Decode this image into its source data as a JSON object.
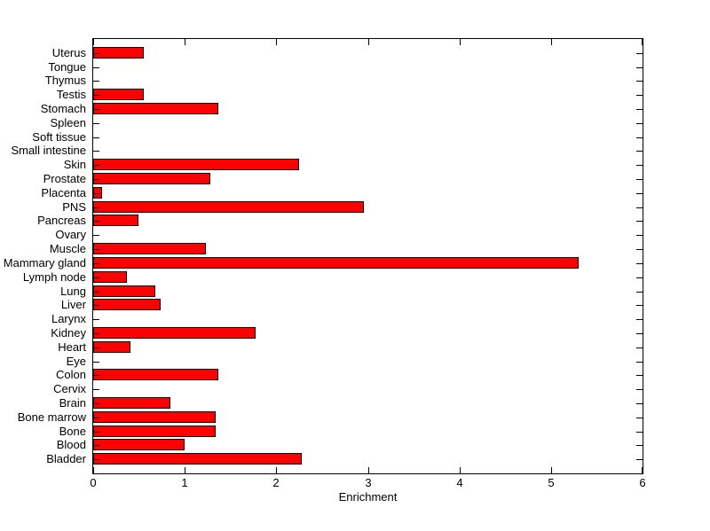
{
  "figure": {
    "background": "#ffffff",
    "axis_color": "#000000",
    "bar_fill": "#ff0000",
    "bar_edge": "#000000",
    "text_color": "#000000"
  },
  "chart_data": {
    "type": "bar",
    "orientation": "horizontal",
    "title": "",
    "xlabel": "Enrichment",
    "ylabel": "",
    "xlim": [
      0,
      6
    ],
    "xticks": [
      0,
      1,
      2,
      3,
      4,
      5,
      6
    ],
    "grid": false,
    "legend": null,
    "categories_top_to_bottom": [
      "Uterus",
      "Tongue",
      "Thymus",
      "Testis",
      "Stomach",
      "Spleen",
      "Soft tissue",
      "Small intestine",
      "Skin",
      "Prostate",
      "Placenta",
      "PNS",
      "Pancreas",
      "Ovary",
      "Muscle",
      "Mammary gland",
      "Lymph node",
      "Lung",
      "Liver",
      "Larynx",
      "Kidney",
      "Heart",
      "Eye",
      "Colon",
      "Cervix",
      "Brain",
      "Bone marrow",
      "Bone",
      "Blood",
      "Bladder"
    ],
    "values": [
      0.55,
      0,
      0,
      0.55,
      1.37,
      0,
      0,
      0,
      2.25,
      1.28,
      0.1,
      2.96,
      0.49,
      0,
      1.23,
      5.3,
      0.37,
      0.68,
      0.74,
      0,
      1.77,
      0.41,
      0,
      1.37,
      0,
      0.84,
      1.34,
      1.34,
      1.0,
      2.28
    ]
  }
}
